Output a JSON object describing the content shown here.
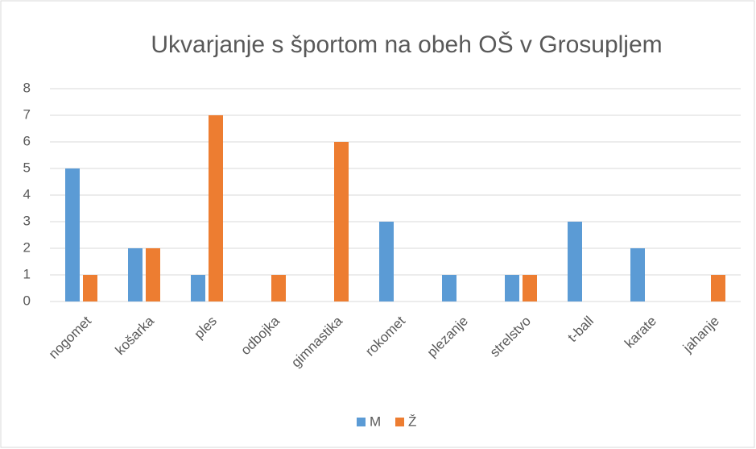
{
  "chart_data": {
    "type": "bar",
    "title": "Ukvarjanje s športom na obeh OŠ v Grosupljem",
    "categories": [
      "nogomet",
      "košarka",
      "ples",
      "odbojka",
      "gimnastika",
      "rokomet",
      "plezanje",
      "strelstvo",
      "t-ball",
      "karate",
      "jahanje"
    ],
    "series": [
      {
        "name": "M",
        "color": "#5b9bd5",
        "values": [
          5,
          2,
          1,
          0,
          0,
          3,
          1,
          1,
          3,
          2,
          0
        ]
      },
      {
        "name": "Ž",
        "color": "#ed7d31",
        "values": [
          1,
          2,
          7,
          1,
          6,
          0,
          0,
          1,
          0,
          0,
          1
        ]
      }
    ],
    "ylim": [
      0,
      8
    ],
    "yticks": [
      0,
      1,
      2,
      3,
      4,
      5,
      6,
      7,
      8
    ],
    "grid": true,
    "legend": "bottom"
  }
}
